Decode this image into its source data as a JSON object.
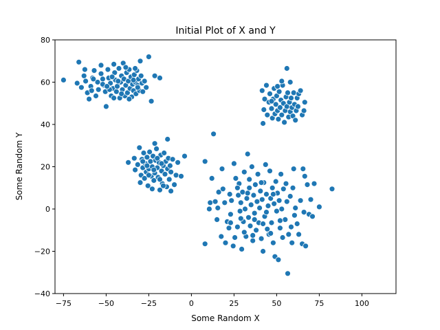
{
  "chart_data": {
    "type": "scatter",
    "title": "Initial Plot of X and Y",
    "xlabel": "Some Random X",
    "ylabel": "Some Random Y",
    "xlim": [
      -80,
      120
    ],
    "ylim": [
      -40,
      80
    ],
    "xticks": [
      -75,
      -50,
      -25,
      0,
      25,
      50,
      75,
      100
    ],
    "yticks": [
      -40,
      -20,
      0,
      20,
      40,
      60,
      80
    ],
    "grid": false,
    "legend": "none",
    "marker_color": "#1f77b4",
    "marker_edge_color": "#ffffff",
    "series": [
      {
        "points": [
          [
            -75.0,
            61.0
          ],
          [
            -66.0,
            69.5
          ],
          [
            -67.0,
            59.5
          ],
          [
            -64.5,
            57.5
          ],
          [
            -63.0,
            63.0
          ],
          [
            -62.0,
            60.5
          ],
          [
            -61.0,
            55.0
          ],
          [
            -60.0,
            52.0
          ],
          [
            -59.0,
            58.0
          ],
          [
            -58.0,
            62.0
          ],
          [
            -57.0,
            65.5
          ],
          [
            -56.0,
            53.5
          ],
          [
            -55.0,
            60.0
          ],
          [
            -54.5,
            56.5
          ],
          [
            -53.0,
            64.0
          ],
          [
            -52.0,
            61.5
          ],
          [
            -51.5,
            58.5
          ],
          [
            -50.5,
            55.5
          ],
          [
            -50.0,
            48.5
          ],
          [
            -49.0,
            66.0
          ],
          [
            -48.5,
            62.0
          ],
          [
            -47.5,
            59.5
          ],
          [
            -47.0,
            53.5
          ],
          [
            -46.0,
            57.0
          ],
          [
            -45.5,
            68.5
          ],
          [
            -45.0,
            64.5
          ],
          [
            -44.5,
            61.0
          ],
          [
            -44.0,
            55.5
          ],
          [
            -43.5,
            58.0
          ],
          [
            -42.5,
            66.5
          ],
          [
            -42.0,
            52.5
          ],
          [
            -41.5,
            60.0
          ],
          [
            -41.0,
            63.0
          ],
          [
            -40.5,
            56.5
          ],
          [
            -40.0,
            69.0
          ],
          [
            -39.5,
            61.5
          ],
          [
            -39.0,
            53.5
          ],
          [
            -38.5,
            58.5
          ],
          [
            -38.0,
            64.5
          ],
          [
            -37.5,
            55.0
          ],
          [
            -37.0,
            60.5
          ],
          [
            -36.5,
            66.0
          ],
          [
            -36.0,
            57.0
          ],
          [
            -35.5,
            62.5
          ],
          [
            -35.0,
            53.0
          ],
          [
            -34.5,
            59.0
          ],
          [
            -34.0,
            56.0
          ],
          [
            -33.5,
            63.5
          ],
          [
            -33.0,
            60.0
          ],
          [
            -32.5,
            54.5
          ],
          [
            -32.0,
            65.5
          ],
          [
            -31.5,
            58.5
          ],
          [
            -31.0,
            61.5
          ],
          [
            -30.5,
            56.0
          ],
          [
            -30.0,
            70.0
          ],
          [
            -29.5,
            63.0
          ],
          [
            -29.0,
            59.5
          ],
          [
            -28.5,
            55.5
          ],
          [
            -27.5,
            60.5
          ],
          [
            -26.5,
            57.5
          ],
          [
            -25.0,
            72.0
          ],
          [
            -23.5,
            51.0
          ],
          [
            -21.5,
            63.0
          ],
          [
            -18.5,
            62.0
          ],
          [
            -53.0,
            68.0
          ],
          [
            -48.0,
            56.5
          ],
          [
            -43.0,
            60.5
          ],
          [
            -38.5,
            67.0
          ],
          [
            -34.0,
            61.0
          ],
          [
            -45.5,
            52.5
          ],
          [
            -52.0,
            59.0
          ],
          [
            -58.5,
            56.0
          ],
          [
            -36.5,
            52.0
          ],
          [
            -31.5,
            57.5
          ],
          [
            -57.5,
            61.5
          ],
          [
            -46.5,
            62.5
          ],
          [
            -41.0,
            54.5
          ],
          [
            -33.0,
            66.5
          ],
          [
            -62.5,
            66.0
          ],
          [
            -49.5,
            58.0
          ],
          [
            -37.0,
            22.0
          ],
          [
            -33.5,
            24.0
          ],
          [
            -33.0,
            18.5
          ],
          [
            -31.5,
            21.0
          ],
          [
            -30.5,
            29.0
          ],
          [
            -30.0,
            12.5
          ],
          [
            -29.5,
            16.0
          ],
          [
            -29.0,
            23.5
          ],
          [
            -28.5,
            19.5
          ],
          [
            -28.0,
            26.5
          ],
          [
            -27.5,
            14.5
          ],
          [
            -27.0,
            21.5
          ],
          [
            -26.5,
            17.5
          ],
          [
            -26.0,
            24.5
          ],
          [
            -25.5,
            11.0
          ],
          [
            -25.0,
            19.0
          ],
          [
            -24.5,
            27.0
          ],
          [
            -24.0,
            22.5
          ],
          [
            -23.5,
            15.5
          ],
          [
            -23.0,
            20.0
          ],
          [
            -22.5,
            25.0
          ],
          [
            -22.0,
            13.5
          ],
          [
            -21.5,
            17.0
          ],
          [
            -21.0,
            23.0
          ],
          [
            -20.5,
            28.5
          ],
          [
            -20.0,
            19.5
          ],
          [
            -19.5,
            15.0
          ],
          [
            -19.0,
            22.0
          ],
          [
            -18.5,
            9.0
          ],
          [
            -18.0,
            25.5
          ],
          [
            -17.5,
            18.0
          ],
          [
            -17.0,
            12.0
          ],
          [
            -16.5,
            20.5
          ],
          [
            -16.0,
            26.5
          ],
          [
            -15.5,
            16.5
          ],
          [
            -15.0,
            22.5
          ],
          [
            -14.5,
            10.5
          ],
          [
            -14.0,
            19.0
          ],
          [
            -13.5,
            24.0
          ],
          [
            -13.0,
            14.0
          ],
          [
            -12.5,
            20.5
          ],
          [
            -12.0,
            17.5
          ],
          [
            -11.0,
            23.5
          ],
          [
            -10.0,
            11.5
          ],
          [
            -9.0,
            16.0
          ],
          [
            -8.0,
            22.0
          ],
          [
            -6.0,
            15.5
          ],
          [
            -4.0,
            25.0
          ],
          [
            -14.0,
            33.0
          ],
          [
            -21.5,
            31.0
          ],
          [
            -26.0,
            20.5
          ],
          [
            -23.0,
            9.5
          ],
          [
            -18.5,
            14.0
          ],
          [
            -25.0,
            16.0
          ],
          [
            -20.0,
            24.0
          ],
          [
            -16.5,
            11.0
          ],
          [
            -12.0,
            8.5
          ],
          [
            -28.5,
            22.5
          ],
          [
            -22.0,
            18.5
          ],
          [
            -17.5,
            21.5
          ],
          [
            56.0,
            66.5
          ],
          [
            41.5,
            56.0
          ],
          [
            42.5,
            47.0
          ],
          [
            42.0,
            40.5
          ],
          [
            43.0,
            52.0
          ],
          [
            44.0,
            58.5
          ],
          [
            44.5,
            44.5
          ],
          [
            45.5,
            50.5
          ],
          [
            46.0,
            54.5
          ],
          [
            47.0,
            47.5
          ],
          [
            47.5,
            43.0
          ],
          [
            48.0,
            52.0
          ],
          [
            48.5,
            57.0
          ],
          [
            49.0,
            45.0
          ],
          [
            49.5,
            49.5
          ],
          [
            50.0,
            53.5
          ],
          [
            50.5,
            46.5
          ],
          [
            51.0,
            42.5
          ],
          [
            51.5,
            55.5
          ],
          [
            52.0,
            48.0
          ],
          [
            52.5,
            51.5
          ],
          [
            53.0,
            44.5
          ],
          [
            53.5,
            58.5
          ],
          [
            54.0,
            50.0
          ],
          [
            54.5,
            41.0
          ],
          [
            55.0,
            46.5
          ],
          [
            55.5,
            53.0
          ],
          [
            56.0,
            48.5
          ],
          [
            56.5,
            55.0
          ],
          [
            57.0,
            43.5
          ],
          [
            57.5,
            50.5
          ],
          [
            58.0,
            46.0
          ],
          [
            58.5,
            52.5
          ],
          [
            59.0,
            48.0
          ],
          [
            59.5,
            44.0
          ],
          [
            60.0,
            55.0
          ],
          [
            60.5,
            49.5
          ],
          [
            61.0,
            42.0
          ],
          [
            61.5,
            46.5
          ],
          [
            62.0,
            52.5
          ],
          [
            62.5,
            48.5
          ],
          [
            63.0,
            54.5
          ],
          [
            64.0,
            56.0
          ],
          [
            65.0,
            44.5
          ],
          [
            66.0,
            46.5
          ],
          [
            66.5,
            50.5
          ],
          [
            58.0,
            60.0
          ],
          [
            53.0,
            60.5
          ],
          [
            50.5,
            58.0
          ],
          [
            47.0,
            51.0
          ],
          [
            8.0,
            22.5
          ],
          [
            8.0,
            -16.5
          ],
          [
            10.5,
            0.0
          ],
          [
            11.0,
            3.0
          ],
          [
            12.0,
            14.5
          ],
          [
            13.0,
            35.5
          ],
          [
            14.0,
            3.5
          ],
          [
            15.0,
            -5.0
          ],
          [
            15.5,
            0.5
          ],
          [
            16.0,
            8.0
          ],
          [
            17.5,
            -13.0
          ],
          [
            18.0,
            19.0
          ],
          [
            18.5,
            9.5
          ],
          [
            19.5,
            3.0
          ],
          [
            20.0,
            -16.0
          ],
          [
            21.0,
            -6.0
          ],
          [
            22.0,
            -9.0
          ],
          [
            22.5,
            7.0
          ],
          [
            23.0,
            -2.5
          ],
          [
            23.5,
            4.0
          ],
          [
            24.5,
            -17.5
          ],
          [
            25.0,
            21.5
          ],
          [
            25.5,
            -13.5
          ],
          [
            26.0,
            14.5
          ],
          [
            27.0,
            -8.5
          ],
          [
            27.5,
            6.5
          ],
          [
            28.0,
            12.0
          ],
          [
            28.5,
            -1.0
          ],
          [
            29.0,
            3.0
          ],
          [
            29.5,
            -19.0
          ],
          [
            30.0,
            8.0
          ],
          [
            30.5,
            -6.0
          ],
          [
            31.0,
            17.5
          ],
          [
            31.5,
            0.0
          ],
          [
            32.0,
            -13.0
          ],
          [
            32.5,
            5.0
          ],
          [
            33.0,
            26.0
          ],
          [
            33.5,
            -4.0
          ],
          [
            34.0,
            10.0
          ],
          [
            34.5,
            -8.0
          ],
          [
            35.0,
            2.0
          ],
          [
            35.5,
            20.0
          ],
          [
            36.0,
            -15.0
          ],
          [
            36.5,
            6.5
          ],
          [
            37.0,
            -2.0
          ],
          [
            37.5,
            11.5
          ],
          [
            38.0,
            -10.0
          ],
          [
            38.5,
            3.5
          ],
          [
            39.0,
            16.5
          ],
          [
            39.5,
            -6.5
          ],
          [
            40.0,
            0.5
          ],
          [
            40.5,
            8.5
          ],
          [
            41.0,
            -14.0
          ],
          [
            41.5,
            4.5
          ],
          [
            42.0,
            -20.0
          ],
          [
            42.5,
            12.5
          ],
          [
            43.0,
            -3.5
          ],
          [
            43.5,
            21.0
          ],
          [
            44.0,
            7.0
          ],
          [
            44.5,
            -9.5
          ],
          [
            45.0,
            1.5
          ],
          [
            45.5,
            -12.0
          ],
          [
            46.0,
            18.0
          ],
          [
            46.5,
            5.0
          ],
          [
            47.0,
            -6.5
          ],
          [
            47.5,
            10.0
          ],
          [
            48.0,
            -16.0
          ],
          [
            48.5,
            2.5
          ],
          [
            49.0,
            -22.5
          ],
          [
            49.5,
            13.0
          ],
          [
            50.0,
            -1.0
          ],
          [
            50.5,
            7.5
          ],
          [
            51.0,
            -24.0
          ],
          [
            51.5,
            4.0
          ],
          [
            52.0,
            -9.0
          ],
          [
            52.5,
            16.5
          ],
          [
            53.0,
            0.0
          ],
          [
            53.5,
            -13.5
          ],
          [
            54.0,
            9.5
          ],
          [
            55.0,
            -5.0
          ],
          [
            56.0,
            3.5
          ],
          [
            56.5,
            -30.5
          ],
          [
            57.0,
            -12.0
          ],
          [
            58.0,
            6.0
          ],
          [
            59.0,
            -16.0
          ],
          [
            59.5,
            10.0
          ],
          [
            60.0,
            19.0
          ],
          [
            60.5,
            -3.0
          ],
          [
            61.0,
            0.5
          ],
          [
            62.0,
            -7.0
          ],
          [
            63.0,
            -12.0
          ],
          [
            64.0,
            4.0
          ],
          [
            65.0,
            -16.5
          ],
          [
            65.5,
            19.0
          ],
          [
            66.0,
            -1.5
          ],
          [
            66.5,
            15.5
          ],
          [
            67.0,
            -17.5
          ],
          [
            68.0,
            11.5
          ],
          [
            69.0,
            -2.5
          ],
          [
            70.0,
            4.5
          ],
          [
            71.0,
            -3.5
          ],
          [
            72.0,
            12.0
          ],
          [
            75.0,
            1.0
          ],
          [
            82.5,
            9.5
          ],
          [
            23.0,
            -6.5
          ],
          [
            27.0,
            10.0
          ],
          [
            31.0,
            -11.0
          ],
          [
            33.0,
            7.5
          ],
          [
            37.0,
            -5.0
          ],
          [
            41.0,
            12.5
          ],
          [
            44.0,
            -1.5
          ],
          [
            48.0,
            7.0
          ],
          [
            52.0,
            -5.5
          ],
          [
            55.5,
            12.0
          ],
          [
            58.5,
            -8.5
          ],
          [
            36.0,
            -12.5
          ],
          [
            42.0,
            -7.0
          ],
          [
            46.5,
            -11.5
          ],
          [
            29.0,
            -4.5
          ],
          [
            34.0,
            14.0
          ]
        ]
      }
    ]
  }
}
